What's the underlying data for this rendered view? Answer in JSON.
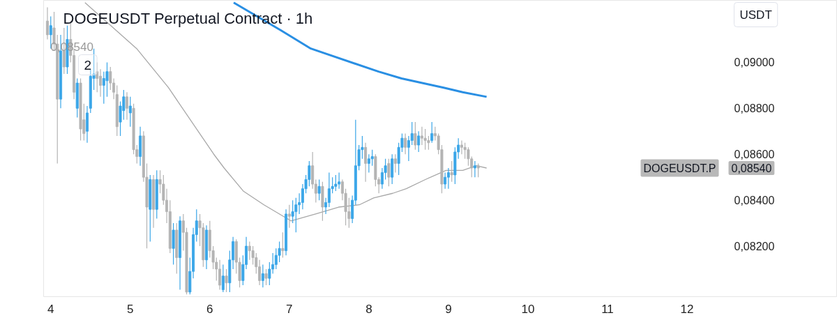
{
  "chart_data": {
    "type": "candlestick",
    "title": "DOGEUSDT Perpetual Contract · 1h",
    "annotations": [
      "0,08540",
      "2",
      "USDT",
      "DOGEUSDT.P",
      "0,08540"
    ],
    "xlim": [
      3.91,
      13.89
    ],
    "xticks": [
      4,
      5,
      6,
      7,
      8,
      9,
      10,
      11,
      12
    ],
    "ylim": [
      0.0798,
      0.0927
    ],
    "yticks": [
      {
        "value": 0.082,
        "label": "0,08200"
      },
      {
        "value": 0.084,
        "label": "0,08400"
      },
      {
        "value": 0.086,
        "label": "0,08600"
      },
      {
        "value": 0.088,
        "label": "0,08800"
      },
      {
        "value": 0.09,
        "label": "0,09000"
      }
    ],
    "grid": false,
    "series": [
      {
        "type": "line",
        "color": "#a8a8a8",
        "x": [
          4.43,
          5.08,
          5.48,
          6.05,
          6.18,
          6.42,
          6.68,
          7.02,
          7.33,
          7.62,
          7.88,
          8.06,
          8.3,
          8.47,
          8.71,
          8.97,
          9.18,
          9.35,
          9.48
        ],
        "values": [
          0.0926,
          0.0906,
          0.0889,
          0.086,
          0.0854,
          0.0844,
          0.0838,
          0.0831,
          0.0834,
          0.0837,
          0.0838,
          0.0841,
          0.0843,
          0.0845,
          0.0849,
          0.0853,
          0.0853,
          0.0855,
          0.0854
        ]
      },
      {
        "type": "line",
        "color": "#2a8fe3",
        "x": [
          6.3,
          6.89,
          7.27,
          8.12,
          8.41,
          8.94,
          9.18,
          9.48
        ],
        "values": [
          0.0926,
          0.0914,
          0.0906,
          0.0896,
          0.0893,
          0.0889,
          0.0887,
          0.0885
        ]
      },
      {
        "x": [
          3.958,
          4,
          4.042,
          4.083,
          4.125,
          4.167,
          4.208,
          4.25,
          4.292,
          4.333,
          4.375,
          4.417,
          4.458,
          4.5,
          4.542,
          4.583,
          4.625,
          4.667,
          4.708,
          4.75,
          4.792,
          4.833,
          4.875,
          4.917,
          4.958,
          5,
          5.042,
          5.083,
          5.125,
          5.167,
          5.208,
          5.25,
          5.292,
          5.333,
          5.375,
          5.417,
          5.458,
          5.5,
          5.542,
          5.583,
          5.625,
          5.667,
          5.708,
          5.75,
          5.792,
          5.833,
          5.875,
          5.917,
          5.958,
          6,
          6.042,
          6.083,
          6.125,
          6.167,
          6.208,
          6.25,
          6.292,
          6.333,
          6.375,
          6.417,
          6.458,
          6.5,
          6.542,
          6.583,
          6.625,
          6.667,
          6.708,
          6.75,
          6.792,
          6.833,
          6.875,
          6.917,
          6.958,
          7,
          7.042,
          7.083,
          7.125,
          7.167,
          7.208,
          7.25,
          7.292,
          7.333,
          7.375,
          7.417,
          7.458,
          7.5,
          7.542,
          7.583,
          7.625,
          7.667,
          7.708,
          7.75,
          7.792,
          7.833,
          7.875,
          7.917,
          7.958,
          8,
          8.042,
          8.083,
          8.125,
          8.167,
          8.208,
          8.25,
          8.292,
          8.333,
          8.375,
          8.417,
          8.458,
          8.5,
          8.542,
          8.583,
          8.625,
          8.667,
          8.708,
          8.75,
          8.792,
          8.833,
          8.875,
          8.917,
          8.958,
          9,
          9.042,
          9.083,
          9.125,
          9.167,
          9.208,
          9.25,
          9.292,
          9.333,
          9.375
        ],
        "ohlc": [
          [
            0.0918,
            0.0924,
            0.091,
            0.0912
          ],
          [
            0.0912,
            0.092,
            0.0906,
            0.0916
          ],
          [
            0.0915,
            0.0922,
            0.0905,
            0.0908
          ],
          [
            0.0908,
            0.0912,
            0.0856,
            0.0884
          ],
          [
            0.0884,
            0.0912,
            0.088,
            0.0905
          ],
          [
            0.0905,
            0.0915,
            0.0895,
            0.0898
          ],
          [
            0.0898,
            0.0916,
            0.0895,
            0.091
          ],
          [
            0.091,
            0.0918,
            0.09,
            0.0903
          ],
          [
            0.0903,
            0.0906,
            0.0884,
            0.0887
          ],
          [
            0.088,
            0.0893,
            0.0876,
            0.0891
          ],
          [
            0.0891,
            0.0893,
            0.0866,
            0.0871
          ],
          [
            0.0875,
            0.0882,
            0.0866,
            0.0869
          ],
          [
            0.087,
            0.0881,
            0.0865,
            0.0878
          ],
          [
            0.088,
            0.0897,
            0.0878,
            0.0894
          ],
          [
            0.0893,
            0.0906,
            0.0888,
            0.0895
          ],
          [
            0.0896,
            0.09,
            0.0887,
            0.0893
          ],
          [
            0.0894,
            0.0897,
            0.0885,
            0.089
          ],
          [
            0.089,
            0.0896,
            0.0882,
            0.0893
          ],
          [
            0.0892,
            0.09,
            0.0885,
            0.0896
          ],
          [
            0.0896,
            0.0898,
            0.0888,
            0.0891
          ],
          [
            0.0891,
            0.0893,
            0.0884,
            0.0887
          ],
          [
            0.0886,
            0.089,
            0.0868,
            0.0872
          ],
          [
            0.0874,
            0.0883,
            0.0868,
            0.0881
          ],
          [
            0.0879,
            0.0888,
            0.0875,
            0.0885
          ],
          [
            0.0885,
            0.0887,
            0.0875,
            0.088
          ],
          [
            0.0878,
            0.0885,
            0.0872,
            0.0881
          ],
          [
            0.088,
            0.0882,
            0.086,
            0.0862
          ],
          [
            0.0862,
            0.0864,
            0.0856,
            0.0859
          ],
          [
            0.0859,
            0.0872,
            0.0855,
            0.0868
          ],
          [
            0.0868,
            0.087,
            0.0848,
            0.085
          ],
          [
            0.085,
            0.0856,
            0.0819,
            0.0837
          ],
          [
            0.0836,
            0.0851,
            0.0822,
            0.0849
          ],
          [
            0.0849,
            0.0851,
            0.0828,
            0.0836
          ],
          [
            0.0836,
            0.0853,
            0.0832,
            0.0849
          ],
          [
            0.0849,
            0.0853,
            0.0843,
            0.0847
          ],
          [
            0.0847,
            0.0851,
            0.0838,
            0.084
          ],
          [
            0.084,
            0.0845,
            0.083,
            0.0835
          ],
          [
            0.0835,
            0.084,
            0.0817,
            0.0819
          ],
          [
            0.0819,
            0.083,
            0.0812,
            0.0827
          ],
          [
            0.0827,
            0.083,
            0.0808,
            0.0815
          ],
          [
            0.0815,
            0.0833,
            0.0801,
            0.0831
          ],
          [
            0.0831,
            0.0834,
            0.0818,
            0.0826
          ],
          [
            0.0826,
            0.0828,
            0.0799,
            0.08
          ],
          [
            0.08,
            0.0815,
            0.0799,
            0.0809
          ],
          [
            0.0809,
            0.0828,
            0.0806,
            0.0825
          ],
          [
            0.0825,
            0.0836,
            0.0822,
            0.0831
          ],
          [
            0.0831,
            0.0834,
            0.082,
            0.0828
          ],
          [
            0.0828,
            0.083,
            0.0811,
            0.0814
          ],
          [
            0.0814,
            0.0829,
            0.081,
            0.0827
          ],
          [
            0.0827,
            0.0831,
            0.0815,
            0.0818
          ],
          [
            0.0818,
            0.082,
            0.081,
            0.0813
          ],
          [
            0.0813,
            0.0815,
            0.0805,
            0.081
          ],
          [
            0.081,
            0.0814,
            0.0801,
            0.0803
          ],
          [
            0.0801,
            0.0812,
            0.08,
            0.0807
          ],
          [
            0.0807,
            0.081,
            0.08,
            0.0804
          ],
          [
            0.0804,
            0.0818,
            0.08,
            0.0814
          ],
          [
            0.0814,
            0.0824,
            0.081,
            0.0822
          ],
          [
            0.0822,
            0.0823,
            0.0808,
            0.0813
          ],
          [
            0.0813,
            0.0815,
            0.0802,
            0.0805
          ],
          [
            0.0805,
            0.0816,
            0.0803,
            0.0812
          ],
          [
            0.0812,
            0.0824,
            0.081,
            0.082
          ],
          [
            0.082,
            0.0822,
            0.0814,
            0.0818
          ],
          [
            0.0818,
            0.082,
            0.0812,
            0.0815
          ],
          [
            0.0815,
            0.0817,
            0.0808,
            0.0811
          ],
          [
            0.0811,
            0.0814,
            0.0803,
            0.0805
          ],
          [
            0.0805,
            0.0812,
            0.0802,
            0.0808
          ],
          [
            0.0808,
            0.081,
            0.0803,
            0.0806
          ],
          [
            0.0806,
            0.0813,
            0.0803,
            0.081
          ],
          [
            0.081,
            0.0817,
            0.0808,
            0.0812
          ],
          [
            0.0812,
            0.0819,
            0.081,
            0.0816
          ],
          [
            0.0816,
            0.0822,
            0.0813,
            0.0819
          ],
          [
            0.0819,
            0.0826,
            0.0815,
            0.0818
          ],
          [
            0.0818,
            0.0836,
            0.0816,
            0.0834
          ],
          [
            0.0834,
            0.0838,
            0.0828,
            0.0833
          ],
          [
            0.0833,
            0.084,
            0.083,
            0.0835
          ],
          [
            0.0835,
            0.0841,
            0.0826,
            0.0838
          ],
          [
            0.0838,
            0.0843,
            0.0834,
            0.0839
          ],
          [
            0.0839,
            0.0847,
            0.0836,
            0.0845
          ],
          [
            0.0845,
            0.0851,
            0.0843,
            0.0849
          ],
          [
            0.0849,
            0.0857,
            0.0846,
            0.0855
          ],
          [
            0.0855,
            0.0861,
            0.0845,
            0.0847
          ],
          [
            0.0847,
            0.0849,
            0.0839,
            0.0843
          ],
          [
            0.0843,
            0.0849,
            0.084,
            0.0846
          ],
          [
            0.0846,
            0.0848,
            0.0831,
            0.0837
          ],
          [
            0.0837,
            0.0841,
            0.0834,
            0.0839
          ],
          [
            0.0839,
            0.0852,
            0.0837,
            0.0845
          ],
          [
            0.0845,
            0.085,
            0.0843,
            0.0846
          ],
          [
            0.0846,
            0.0851,
            0.0844,
            0.0847
          ],
          [
            0.0847,
            0.0852,
            0.0845,
            0.0848
          ],
          [
            0.0848,
            0.0849,
            0.084,
            0.0843
          ],
          [
            0.0843,
            0.0845,
            0.0829,
            0.0835
          ],
          [
            0.0835,
            0.0841,
            0.0828,
            0.0832
          ],
          [
            0.0832,
            0.0842,
            0.083,
            0.084
          ],
          [
            0.084,
            0.0875,
            0.0838,
            0.0855
          ],
          [
            0.0855,
            0.0864,
            0.0853,
            0.0862
          ],
          [
            0.0862,
            0.0868,
            0.0858,
            0.0863
          ],
          [
            0.0863,
            0.0865,
            0.0848,
            0.0856
          ],
          [
            0.0856,
            0.086,
            0.0852,
            0.0858
          ],
          [
            0.0858,
            0.0862,
            0.0855,
            0.0859
          ],
          [
            0.0859,
            0.086,
            0.0846,
            0.0849
          ],
          [
            0.0849,
            0.085,
            0.0843,
            0.0847
          ],
          [
            0.0847,
            0.0854,
            0.0845,
            0.0852
          ],
          [
            0.0852,
            0.0858,
            0.0849,
            0.0855
          ],
          [
            0.0856,
            0.0858,
            0.0846,
            0.085
          ],
          [
            0.085,
            0.086,
            0.0847,
            0.0858
          ],
          [
            0.0858,
            0.086,
            0.0852,
            0.0856
          ],
          [
            0.0856,
            0.0865,
            0.0851,
            0.0863
          ],
          [
            0.0863,
            0.0869,
            0.0861,
            0.0867
          ],
          [
            0.0867,
            0.0869,
            0.086,
            0.0863
          ],
          [
            0.0863,
            0.0868,
            0.0857,
            0.0866
          ],
          [
            0.0866,
            0.0874,
            0.0864,
            0.0869
          ],
          [
            0.0869,
            0.0874,
            0.0862,
            0.0864
          ],
          [
            0.0864,
            0.087,
            0.0861,
            0.0868
          ],
          [
            0.0868,
            0.0872,
            0.0864,
            0.0867
          ],
          [
            0.0867,
            0.0871,
            0.0862,
            0.0866
          ],
          [
            0.0866,
            0.0868,
            0.0862,
            0.0865
          ],
          [
            0.0866,
            0.0874,
            0.0865,
            0.0869
          ],
          [
            0.0869,
            0.0872,
            0.0866,
            0.0868
          ],
          [
            0.0868,
            0.0869,
            0.086,
            0.0862
          ],
          [
            0.0862,
            0.0864,
            0.0843,
            0.0847
          ],
          [
            0.0847,
            0.0852,
            0.0845,
            0.085
          ],
          [
            0.085,
            0.0854,
            0.0845,
            0.0852
          ],
          [
            0.0852,
            0.0857,
            0.0848,
            0.0851
          ],
          [
            0.0851,
            0.0863,
            0.0847,
            0.0861
          ],
          [
            0.0861,
            0.0867,
            0.0858,
            0.0864
          ],
          [
            0.0864,
            0.0866,
            0.086,
            0.0863
          ],
          [
            0.0863,
            0.0865,
            0.0858,
            0.0862
          ],
          [
            0.0862,
            0.0863,
            0.0855,
            0.0858
          ],
          [
            0.0858,
            0.0859,
            0.085,
            0.0854
          ],
          [
            0.0854,
            0.0857,
            0.085,
            0.0855
          ],
          [
            0.0855,
            0.0856,
            0.085,
            0.0854
          ]
        ],
        "colors": [
          "#b4b4b4",
          "#3aa6e8",
          "#b4b4b4",
          "#b4b4b4",
          "#3aa6e8",
          "#b4b4b4",
          "#3aa6e8",
          "#b4b4b4",
          "#b4b4b4",
          "#3aa6e8",
          "#b4b4b4",
          "#b4b4b4",
          "#3aa6e8",
          "#3aa6e8",
          "#3aa6e8",
          "#b4b4b4",
          "#b4b4b4",
          "#3aa6e8",
          "#3aa6e8",
          "#b4b4b4",
          "#b4b4b4",
          "#b4b4b4",
          "#3aa6e8",
          "#3aa6e8",
          "#b4b4b4",
          "#3aa6e8",
          "#b4b4b4",
          "#b4b4b4",
          "#3aa6e8",
          "#b4b4b4",
          "#b4b4b4",
          "#3aa6e8",
          "#b4b4b4",
          "#3aa6e8",
          "#b4b4b4",
          "#b4b4b4",
          "#b4b4b4",
          "#b4b4b4",
          "#3aa6e8",
          "#b4b4b4",
          "#3aa6e8",
          "#b4b4b4",
          "#b4b4b4",
          "#3aa6e8",
          "#3aa6e8",
          "#3aa6e8",
          "#b4b4b4",
          "#b4b4b4",
          "#3aa6e8",
          "#b4b4b4",
          "#b4b4b4",
          "#b4b4b4",
          "#b4b4b4",
          "#3aa6e8",
          "#b4b4b4",
          "#3aa6e8",
          "#3aa6e8",
          "#b4b4b4",
          "#b4b4b4",
          "#3aa6e8",
          "#3aa6e8",
          "#b4b4b4",
          "#b4b4b4",
          "#b4b4b4",
          "#b4b4b4",
          "#3aa6e8",
          "#b4b4b4",
          "#3aa6e8",
          "#3aa6e8",
          "#3aa6e8",
          "#3aa6e8",
          "#b4b4b4",
          "#3aa6e8",
          "#b4b4b4",
          "#3aa6e8",
          "#3aa6e8",
          "#3aa6e8",
          "#3aa6e8",
          "#3aa6e8",
          "#3aa6e8",
          "#b4b4b4",
          "#b4b4b4",
          "#3aa6e8",
          "#b4b4b4",
          "#3aa6e8",
          "#3aa6e8",
          "#3aa6e8",
          "#3aa6e8",
          "#3aa6e8",
          "#b4b4b4",
          "#b4b4b4",
          "#b4b4b4",
          "#3aa6e8",
          "#3aa6e8",
          "#3aa6e8",
          "#3aa6e8",
          "#b4b4b4",
          "#3aa6e8",
          "#3aa6e8",
          "#b4b4b4",
          "#b4b4b4",
          "#3aa6e8",
          "#3aa6e8",
          "#b4b4b4",
          "#3aa6e8",
          "#b4b4b4",
          "#3aa6e8",
          "#3aa6e8",
          "#b4b4b4",
          "#3aa6e8",
          "#3aa6e8",
          "#b4b4b4",
          "#3aa6e8",
          "#b4b4b4",
          "#b4b4b4",
          "#b4b4b4",
          "#3aa6e8",
          "#b4b4b4",
          "#b4b4b4",
          "#b4b4b4",
          "#3aa6e8",
          "#3aa6e8",
          "#b4b4b4",
          "#3aa6e8",
          "#3aa6e8",
          "#b4b4b4",
          "#b4b4b4",
          "#b4b4b4",
          "#b4b4b4",
          "#3aa6e8",
          "#b4b4b4"
        ]
      }
    ]
  }
}
